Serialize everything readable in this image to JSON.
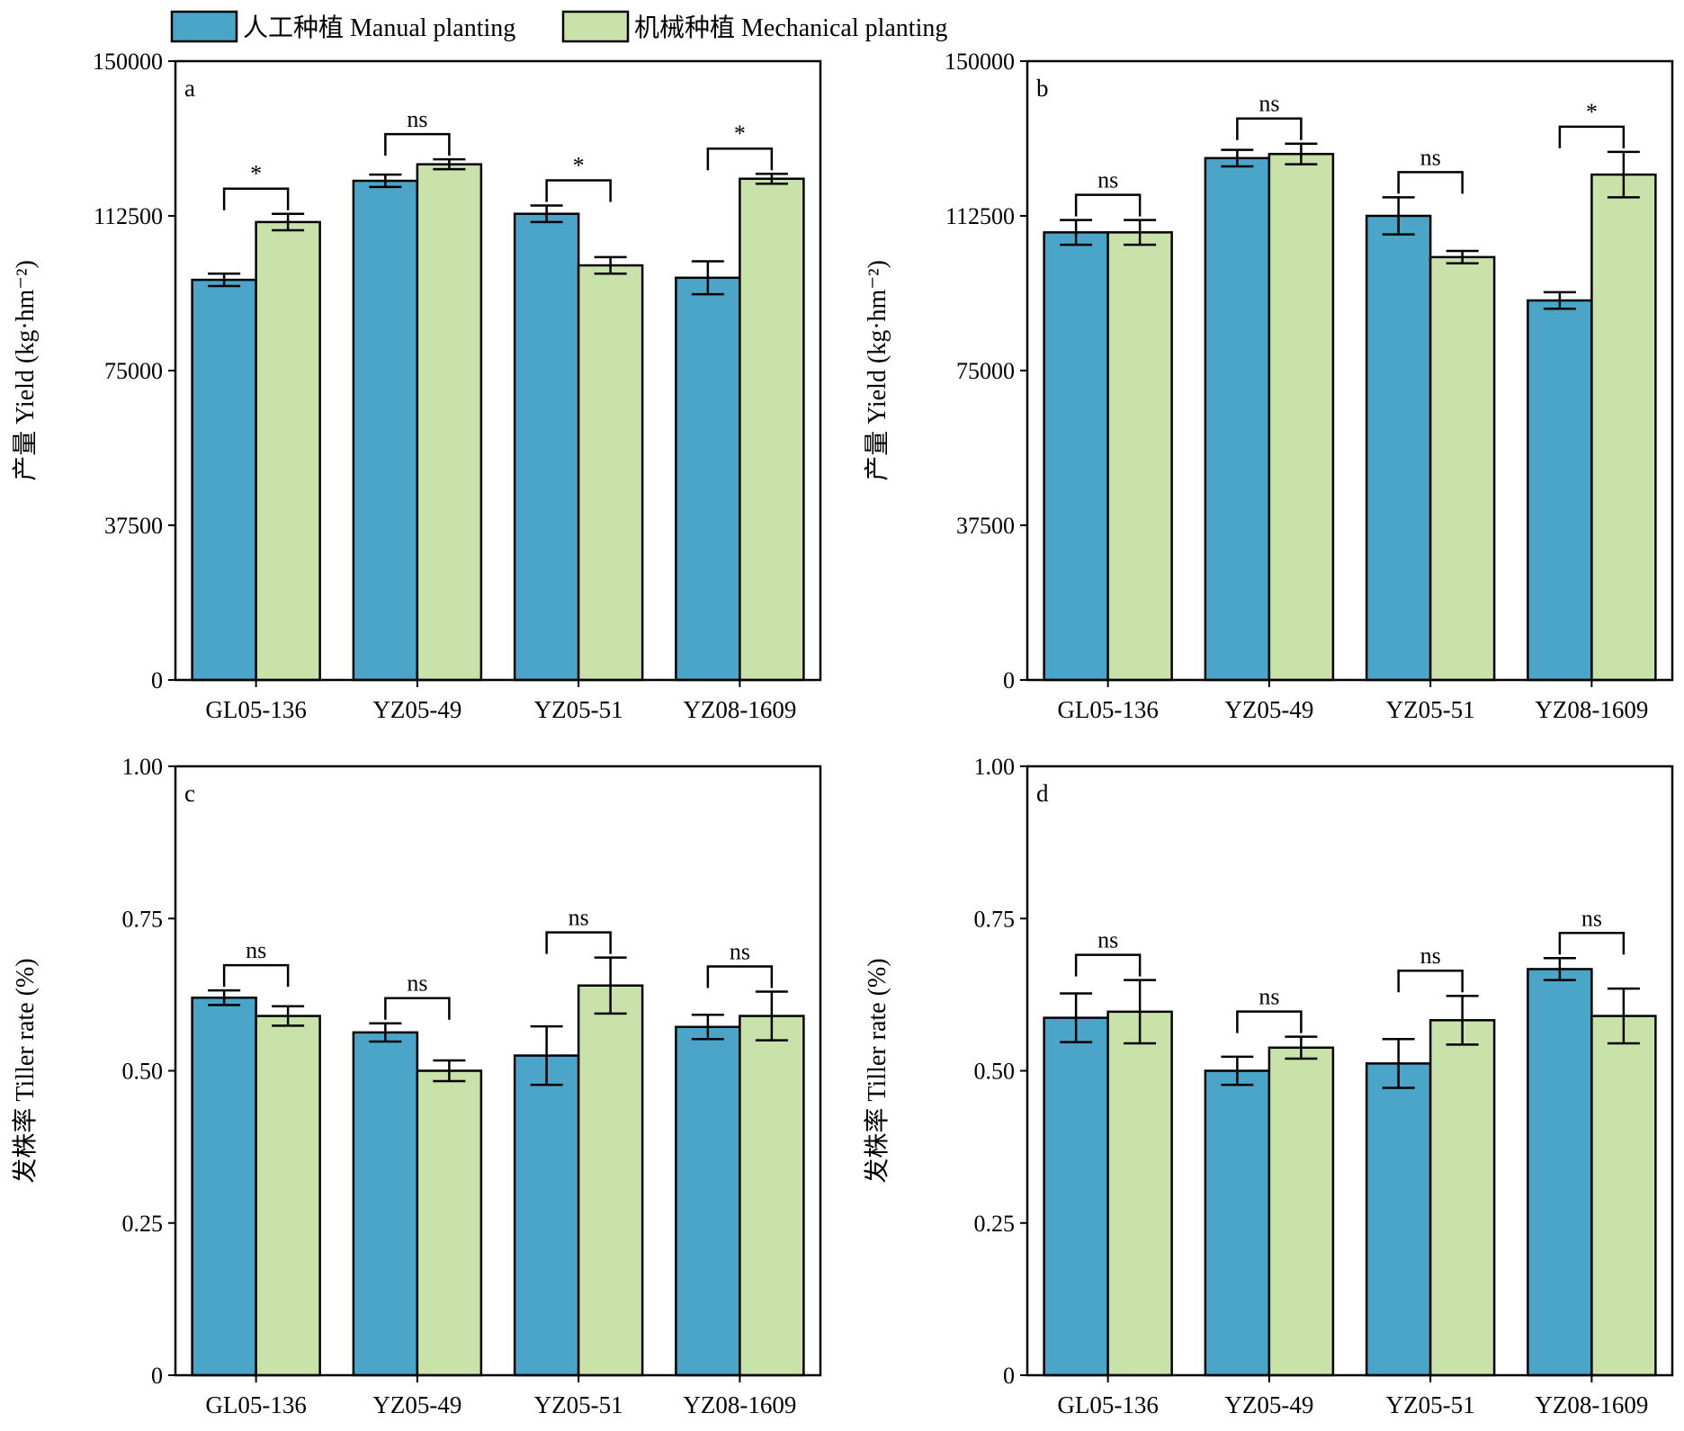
{
  "legend": {
    "items": [
      {
        "label": "人工种植 Manual planting",
        "color": "#4ba5c9"
      },
      {
        "label": "机械种植 Mechanical planting",
        "color": "#c9e2a9"
      }
    ]
  },
  "chart_data": [
    {
      "type": "bar",
      "panel_label": "a",
      "categories": [
        "GL05-136",
        "YZ05-49",
        "YZ05-51",
        "YZ08-1609"
      ],
      "ylabel": "产量 Yield (kg·hm⁻²)",
      "ylim": [
        0,
        150000
      ],
      "yticks": [
        0,
        37500,
        75000,
        112500,
        150000
      ],
      "tick_labels": [
        "0",
        "37500",
        "75000",
        "112500",
        "150000"
      ],
      "series": [
        {
          "name": "人工种植 Manual planting",
          "values": [
            97000,
            121000,
            113000,
            97500
          ],
          "errors": [
            1500,
            1500,
            2000,
            4000
          ]
        },
        {
          "name": "机械种植 Mechanical planting",
          "values": [
            111000,
            125000,
            100500,
            121500
          ],
          "errors": [
            2000,
            1200,
            2000,
            1200
          ]
        }
      ],
      "significance": [
        "*",
        "ns",
        "*",
        "*"
      ]
    },
    {
      "type": "bar",
      "panel_label": "b",
      "categories": [
        "GL05-136",
        "YZ05-49",
        "YZ05-51",
        "YZ08-1609"
      ],
      "ylabel": "产量 Yield (kg·hm⁻²)",
      "ylim": [
        0,
        150000
      ],
      "yticks": [
        0,
        37500,
        75000,
        112500,
        150000
      ],
      "tick_labels": [
        "0",
        "37500",
        "75000",
        "112500",
        "150000"
      ],
      "series": [
        {
          "name": "人工种植 Manual planting",
          "values": [
            108500,
            126500,
            112500,
            92000
          ],
          "errors": [
            3000,
            2000,
            4500,
            2000
          ]
        },
        {
          "name": "机械种植 Mechanical planting",
          "values": [
            108500,
            127500,
            102500,
            122500
          ],
          "errors": [
            3000,
            2500,
            1500,
            5500
          ]
        }
      ],
      "significance": [
        "ns",
        "ns",
        "ns",
        "*"
      ]
    },
    {
      "type": "bar",
      "panel_label": "c",
      "categories": [
        "GL05-136",
        "YZ05-49",
        "YZ05-51",
        "YZ08-1609"
      ],
      "ylabel": "发株率 Tiller rate (%)",
      "ylim": [
        0,
        1.0
      ],
      "yticks": [
        0,
        0.25,
        0.5,
        0.75,
        1.0
      ],
      "tick_labels": [
        "0",
        "0.25",
        "0.50",
        "0.75",
        "1.00"
      ],
      "series": [
        {
          "name": "人工种植 Manual planting",
          "values": [
            0.62,
            0.563,
            0.525,
            0.572
          ],
          "errors": [
            0.012,
            0.015,
            0.048,
            0.02
          ]
        },
        {
          "name": "机械种植 Mechanical planting",
          "values": [
            0.59,
            0.5,
            0.64,
            0.59
          ],
          "errors": [
            0.016,
            0.017,
            0.046,
            0.04
          ]
        }
      ],
      "significance": [
        "ns",
        "ns",
        "ns",
        "ns"
      ]
    },
    {
      "type": "bar",
      "panel_label": "d",
      "categories": [
        "GL05-136",
        "YZ05-49",
        "YZ05-51",
        "YZ08-1609"
      ],
      "ylabel": "发株率 Tiller rate (%)",
      "ylim": [
        0,
        1.0
      ],
      "yticks": [
        0,
        0.25,
        0.5,
        0.75,
        1.0
      ],
      "tick_labels": [
        "0",
        "0.25",
        "0.50",
        "0.75",
        "1.00"
      ],
      "series": [
        {
          "name": "人工种植 Manual planting",
          "values": [
            0.587,
            0.5,
            0.512,
            0.667
          ],
          "errors": [
            0.04,
            0.023,
            0.04,
            0.018
          ]
        },
        {
          "name": "机械种植 Mechanical planting",
          "values": [
            0.597,
            0.538,
            0.583,
            0.59
          ],
          "errors": [
            0.052,
            0.018,
            0.04,
            0.045
          ]
        }
      ],
      "significance": [
        "ns",
        "ns",
        "ns",
        "ns"
      ]
    }
  ]
}
